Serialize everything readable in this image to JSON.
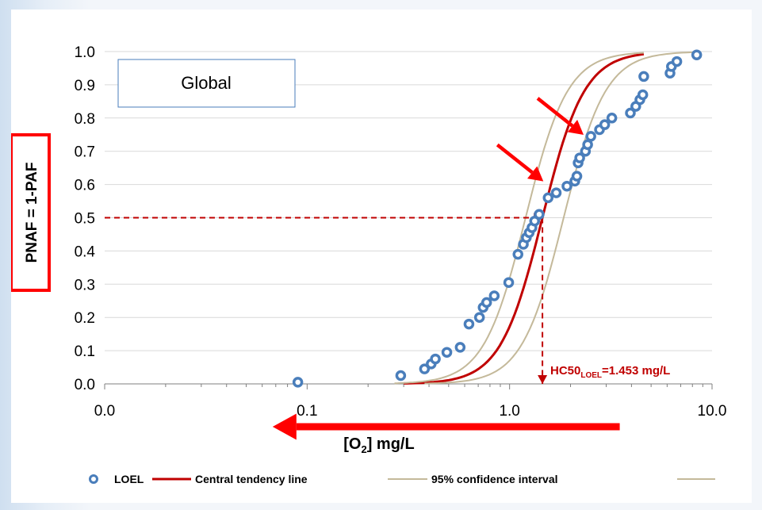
{
  "chart_data": {
    "type": "scatter",
    "x_scale": "log",
    "xlim": [
      0.01,
      10
    ],
    "ylim": [
      0,
      1
    ],
    "x_ticks": [
      0.01,
      0.1,
      1,
      10
    ],
    "x_tick_labels": [
      "0.0",
      "0.1",
      "1.0",
      "10.0"
    ],
    "y_ticks": [
      0,
      0.1,
      0.2,
      0.3,
      0.4,
      0.5,
      0.6,
      0.7,
      0.8,
      0.9,
      1.0
    ],
    "y_tick_labels": [
      "0.0",
      "0.1",
      "0.2",
      "0.3",
      "0.4",
      "0.5",
      "0.6",
      "0.7",
      "0.8",
      "0.9",
      "1.0"
    ],
    "grid": "horizontal",
    "xlabel": {
      "pre": "[O",
      "sub": "2",
      "post": "] mg/L"
    },
    "ylabel": "PNAF = 1-PAF",
    "inset_label": "Global",
    "series": [
      {
        "name": "LOEL",
        "type": "scatter",
        "color": "#4a7ebb",
        "points": [
          [
            0.09,
            0.005
          ],
          [
            0.29,
            0.025
          ],
          [
            0.38,
            0.045
          ],
          [
            0.41,
            0.06
          ],
          [
            0.43,
            0.075
          ],
          [
            0.49,
            0.095
          ],
          [
            0.57,
            0.11
          ],
          [
            0.63,
            0.18
          ],
          [
            0.71,
            0.2
          ],
          [
            0.74,
            0.23
          ],
          [
            0.77,
            0.245
          ],
          [
            0.84,
            0.265
          ],
          [
            0.99,
            0.305
          ],
          [
            1.1,
            0.39
          ],
          [
            1.17,
            0.42
          ],
          [
            1.21,
            0.44
          ],
          [
            1.25,
            0.455
          ],
          [
            1.29,
            0.47
          ],
          [
            1.33,
            0.49
          ],
          [
            1.4,
            0.51
          ],
          [
            1.55,
            0.56
          ],
          [
            1.7,
            0.575
          ],
          [
            1.92,
            0.595
          ],
          [
            2.1,
            0.61
          ],
          [
            2.15,
            0.625
          ],
          [
            2.18,
            0.665
          ],
          [
            2.22,
            0.68
          ],
          [
            2.37,
            0.7
          ],
          [
            2.43,
            0.72
          ],
          [
            2.52,
            0.745
          ],
          [
            2.78,
            0.765
          ],
          [
            2.95,
            0.78
          ],
          [
            3.2,
            0.8
          ],
          [
            3.95,
            0.815
          ],
          [
            4.2,
            0.835
          ],
          [
            4.4,
            0.855
          ],
          [
            4.55,
            0.87
          ],
          [
            4.6,
            0.925
          ],
          [
            6.2,
            0.935
          ],
          [
            6.3,
            0.955
          ],
          [
            6.7,
            0.97
          ],
          [
            8.4,
            0.99
          ]
        ]
      },
      {
        "name": "Central tendency line",
        "type": "line",
        "color": "#c00000",
        "model": "log-logistic",
        "median": 1.453,
        "slope": 4.2,
        "x_range": [
          0.3,
          4.6
        ]
      },
      {
        "name": "95% confidence interval",
        "type": "line",
        "color": "#c4b99a",
        "model": "log-logistic",
        "median": 1.2,
        "slope": 4.2,
        "x_range": [
          0.27,
          4.6
        ]
      },
      {
        "name": "95% confidence interval",
        "type": "line",
        "color": "#c4b99a",
        "model": "log-logistic",
        "median": 1.85,
        "slope": 4.2,
        "x_range": [
          0.38,
          8.4
        ]
      }
    ],
    "reference_lines": [
      {
        "from": [
          0.01,
          0.5
        ],
        "to": [
          1.453,
          0.5
        ],
        "style": "dashed",
        "color": "#c00000"
      },
      {
        "from": [
          1.453,
          0.5
        ],
        "to": [
          1.453,
          0
        ],
        "style": "dashed",
        "color": "#c00000"
      }
    ],
    "annotation": {
      "prefix": "HC50",
      "sub": "LOEL",
      "suffix": "=1.453 mg/L",
      "color": "#c00000"
    },
    "pointer_arrows": [
      {
        "target": [
          2.45,
          0.74
        ],
        "color": "#ff0000"
      },
      {
        "target": [
          1.55,
          0.6
        ],
        "color": "#ff0000"
      }
    ],
    "direction_arrow": {
      "from": 3.5,
      "to": 0.03,
      "color": "#ff0000"
    },
    "legend": {
      "position": "bottom",
      "items": [
        {
          "label": "LOEL",
          "marker": "circle"
        },
        {
          "label": "Central tendency line",
          "marker": "line",
          "color": "#c00000"
        },
        {
          "label": "95% confidence interval",
          "marker": "line",
          "color": "#c4b99a"
        }
      ]
    }
  }
}
